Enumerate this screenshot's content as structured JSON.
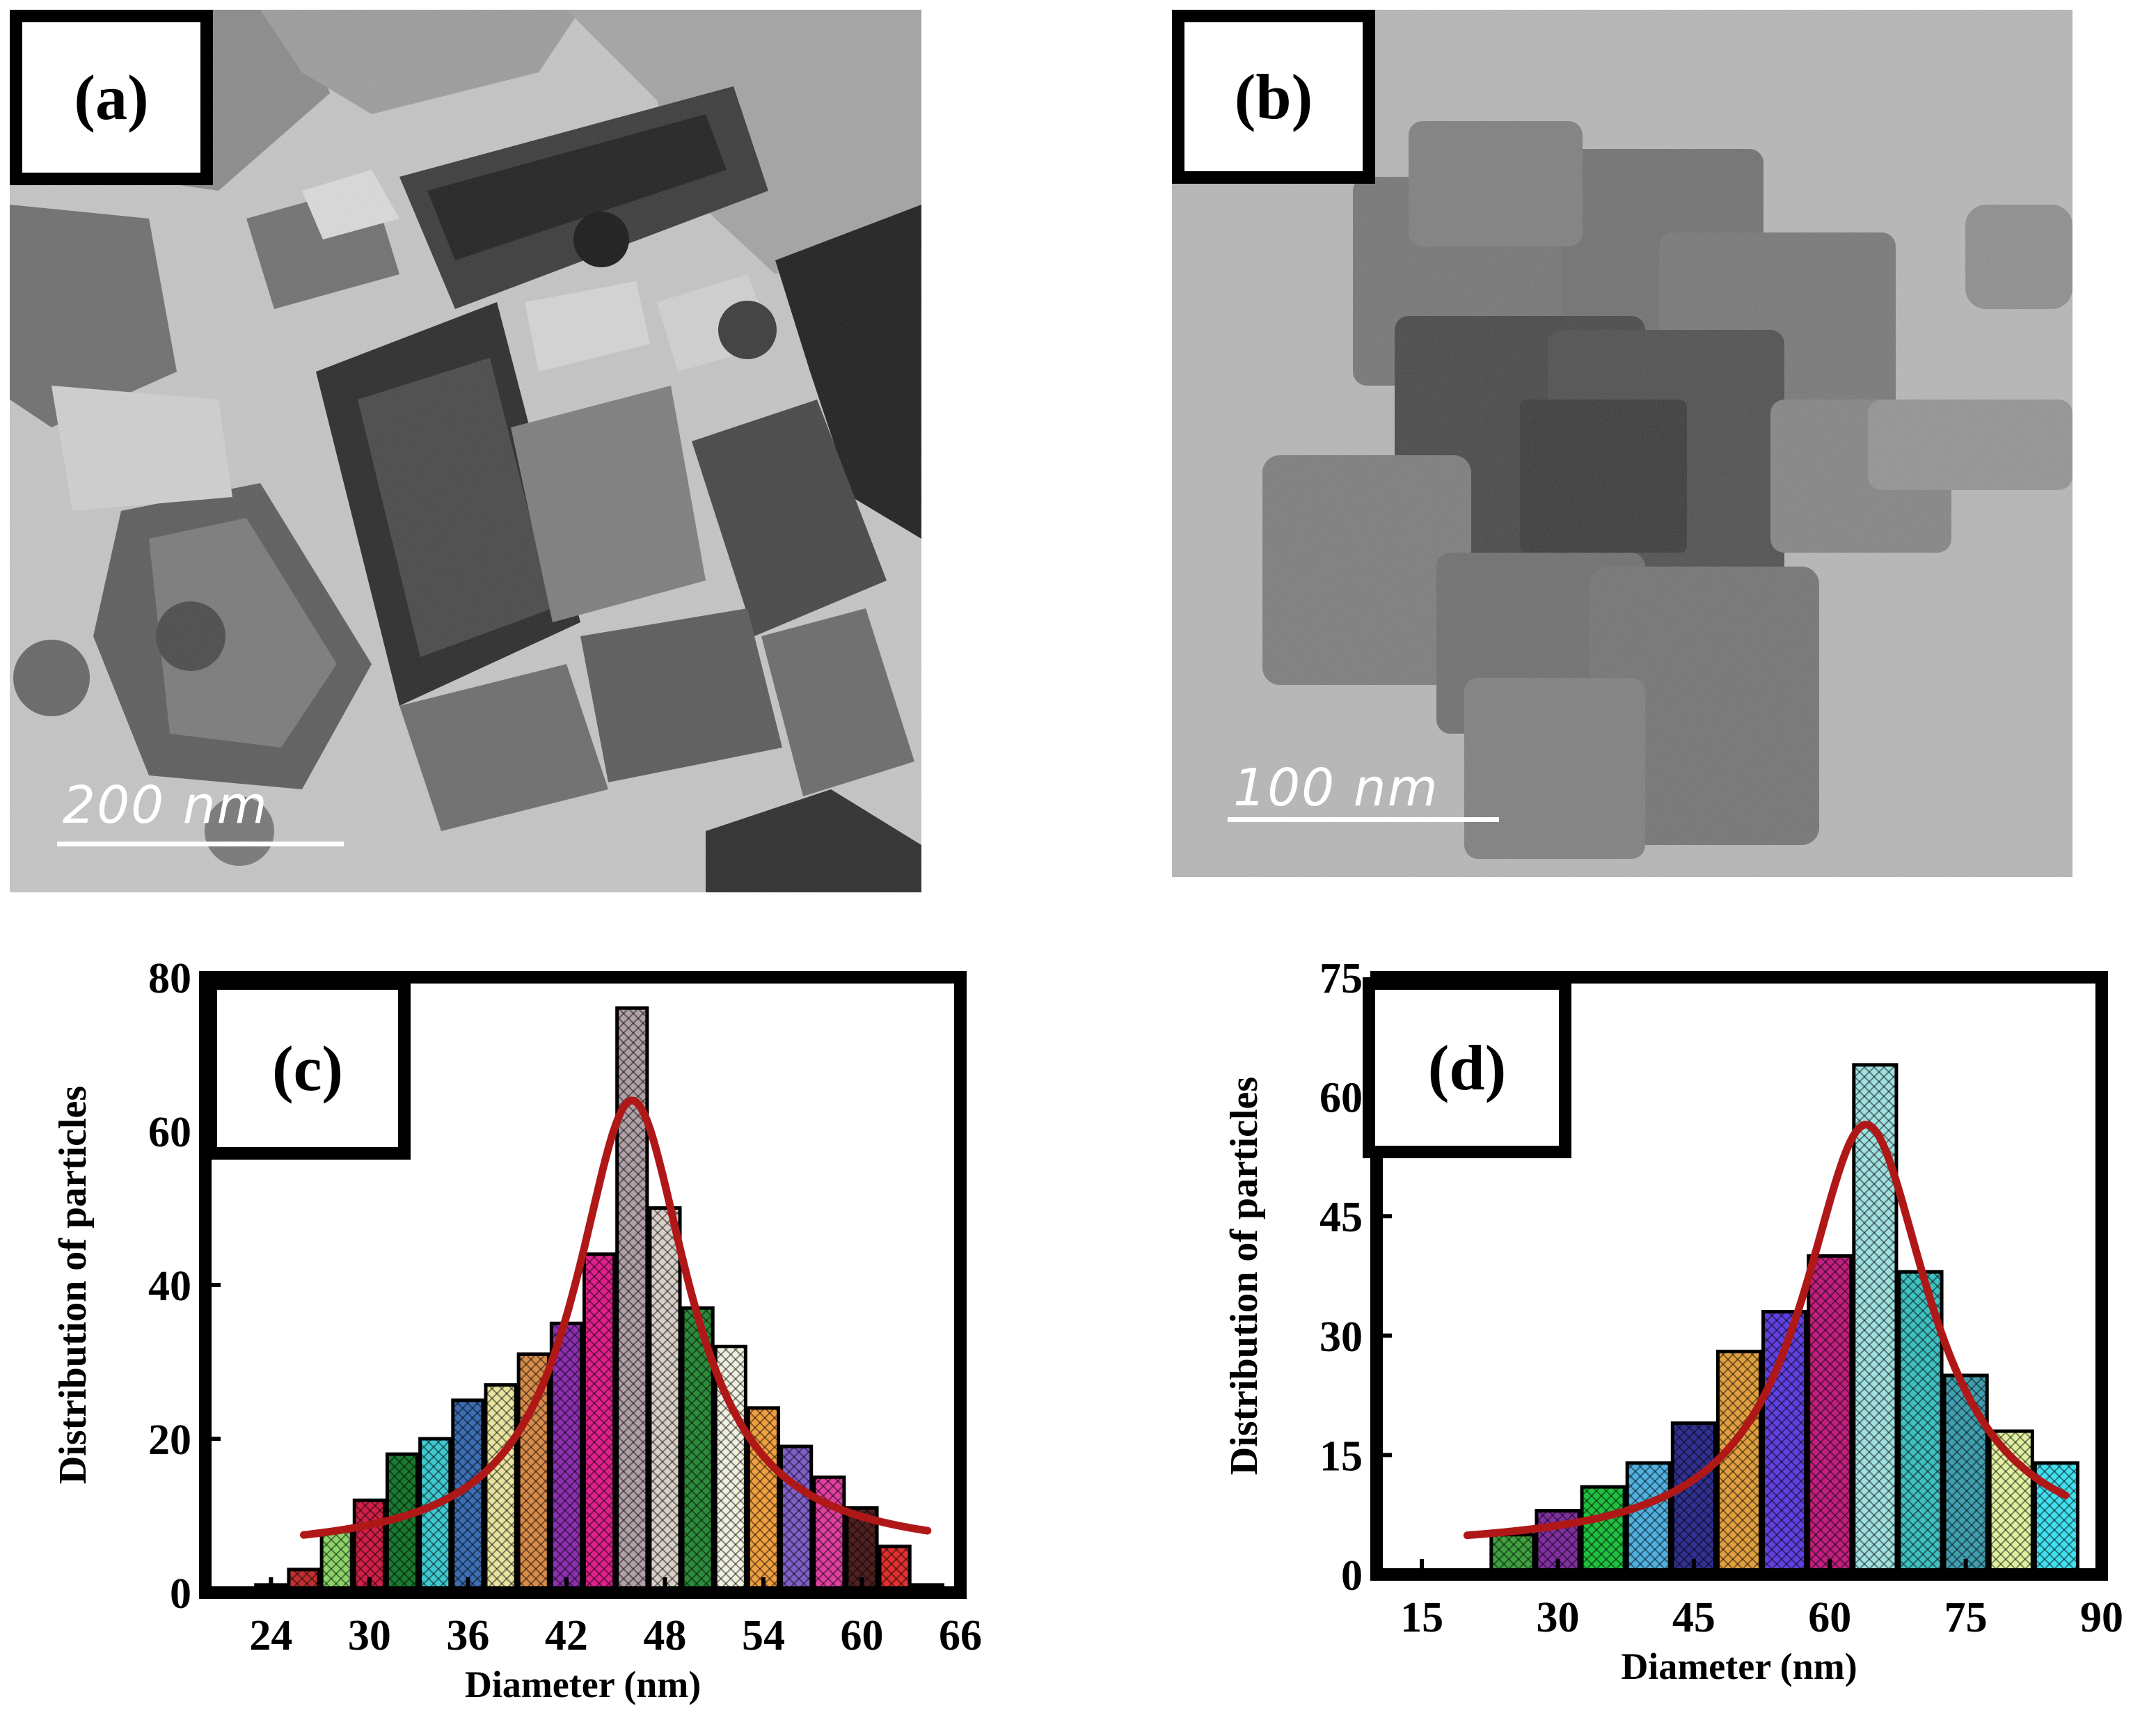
{
  "panels": {
    "a": {
      "label": "(a)",
      "scale_text": "200  nm"
    },
    "b": {
      "label": "(b)",
      "scale_text": "100  nm"
    },
    "c": {
      "label": "(c)"
    },
    "d": {
      "label": "(d)"
    }
  },
  "colors": {
    "fit_curve": "#b01818",
    "frame": "#000000",
    "tem_bg_a": "#c8c8c8",
    "tem_bg_b": "#b4b4b4"
  },
  "chart_data": [
    {
      "id": "c",
      "type": "bar",
      "xlabel": "Diameter (nm)",
      "ylabel": "Distribution of particles",
      "xlim": [
        20,
        66
      ],
      "ylim": [
        0,
        80
      ],
      "xticks": [
        24,
        30,
        36,
        42,
        48,
        54,
        60,
        66
      ],
      "yticks": [
        0,
        20,
        40,
        60,
        80
      ],
      "bin_width": 2,
      "x": [
        24,
        26,
        28,
        30,
        32,
        34,
        36,
        38,
        40,
        42,
        44,
        46,
        48,
        50,
        52,
        54,
        56,
        58,
        60,
        62,
        64
      ],
      "values": [
        1,
        3,
        8,
        12,
        18,
        20,
        25,
        27,
        31,
        35,
        44,
        76,
        50,
        37,
        32,
        24,
        19,
        15,
        11,
        6,
        1
      ],
      "bar_colors": [
        "#303030",
        "#c03030",
        "#8cd46a",
        "#d02048",
        "#1a7a30",
        "#40c8d0",
        "#3c6eb4",
        "#e8e4a0",
        "#d88c4a",
        "#8c30b0",
        "#e0208c",
        "#b0a0a8",
        "#d8d0c8",
        "#2c8c3c",
        "#f0f0e0",
        "#f0a040",
        "#8060c8",
        "#e040a0",
        "#502020",
        "#e03030",
        "#98c880"
      ],
      "fit": {
        "type": "lorentzian",
        "center": 46,
        "peak": 64,
        "baseline": 5,
        "hwhm": 4.2,
        "x_range": [
          26,
          64
        ]
      }
    },
    {
      "id": "d",
      "type": "bar",
      "xlabel": "Diameter (nm)",
      "ylabel": "Distribution of particles",
      "xlim": [
        10,
        90
      ],
      "ylim": [
        0,
        75
      ],
      "xticks": [
        15,
        30,
        45,
        60,
        75,
        90
      ],
      "yticks": [
        0,
        15,
        30,
        45,
        60,
        75
      ],
      "bin_width": 5,
      "x": [
        15,
        25,
        30,
        35,
        40,
        45,
        50,
        55,
        60,
        65,
        70,
        75,
        80,
        85
      ],
      "values": [
        0.5,
        5,
        8,
        11,
        14,
        19,
        28,
        33,
        40,
        64,
        38,
        25,
        18,
        14
      ],
      "bar_colors": [
        "#303030",
        "#40a040",
        "#8030a0",
        "#20c040",
        "#50b0e0",
        "#303090",
        "#e0a040",
        "#6040e0",
        "#c02080",
        "#a0e0e0",
        "#40c0c0",
        "#40a0b0",
        "#e0f0a0",
        "#40e0f0"
      ],
      "fit": {
        "type": "lorentzian",
        "center": 64,
        "peak": 56.5,
        "baseline": 3,
        "hwhm": 8.5,
        "x_range": [
          20,
          86
        ]
      }
    }
  ]
}
